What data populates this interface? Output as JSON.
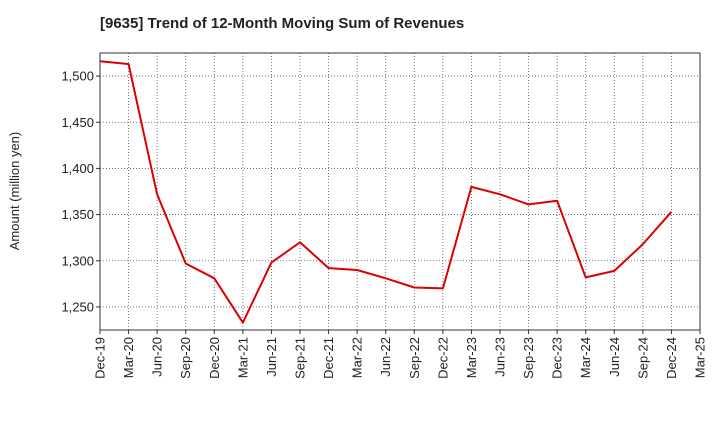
{
  "chart_data": {
    "type": "line",
    "title": "[9635]  Trend of 12-Month Moving Sum of Revenues",
    "xlabel": "",
    "ylabel": "Amount (million yen)",
    "categories": [
      "Dec-19",
      "Mar-20",
      "Jun-20",
      "Sep-20",
      "Dec-20",
      "Mar-21",
      "Jun-21",
      "Sep-21",
      "Dec-21",
      "Mar-22",
      "Jun-22",
      "Sep-22",
      "Dec-22",
      "Mar-23",
      "Jun-23",
      "Sep-23",
      "Dec-23",
      "Mar-24",
      "Jun-24",
      "Sep-24",
      "Dec-24",
      "Mar-25"
    ],
    "yticks": [
      1250,
      1300,
      1350,
      1400,
      1450,
      1500
    ],
    "ytick_labels": [
      "1,250",
      "1,300",
      "1,350",
      "1,400",
      "1,450",
      "1,500"
    ],
    "ylim": [
      1225,
      1525
    ],
    "grid": true,
    "series": [
      {
        "color": "#dd0000",
        "values": [
          1516,
          1513,
          1372,
          1297,
          1281,
          1233,
          1298,
          1320,
          1292,
          1290,
          1281,
          1271,
          1270,
          1380,
          1372,
          1361,
          1365,
          1282,
          1289,
          1318,
          1353,
          null
        ]
      }
    ]
  }
}
